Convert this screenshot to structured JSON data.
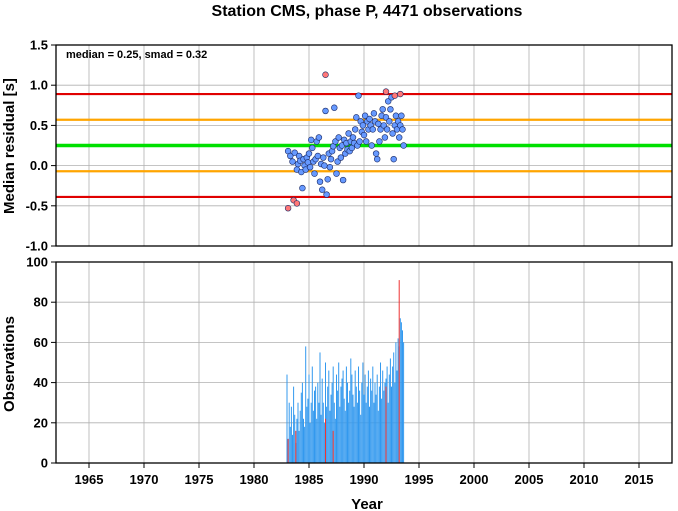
{
  "chart_data": [
    {
      "panel": "residuals",
      "type": "scatter",
      "title": "Station CMS, phase P, 4471 observations",
      "ylabel": "Median residual [s]",
      "stats_text": "median = 0.25, smad = 0.32",
      "xlim": [
        1962,
        2018
      ],
      "ylim": [
        -1.0,
        1.5
      ],
      "x_ticks": [
        1965,
        1970,
        1975,
        1980,
        1985,
        1990,
        1995,
        2000,
        2005,
        2010,
        2015
      ],
      "y_ticks": [
        -1.0,
        -0.5,
        0.0,
        0.5,
        1.0,
        1.5
      ],
      "y_tick_labels": [
        "-1.0",
        "-0.5",
        "0.0",
        "0.5",
        "1.0",
        "1.5"
      ],
      "grid": true,
      "reference_lines": [
        {
          "value": 0.25,
          "color": "#00e000",
          "meaning": "median"
        },
        {
          "value": 0.57,
          "color": "#ffa500"
        },
        {
          "value": -0.07,
          "color": "#ffa500"
        },
        {
          "value": 0.89,
          "color": "#e00000"
        },
        {
          "value": -0.39,
          "color": "#e00000"
        }
      ],
      "series": [
        {
          "color": "#6699ff",
          "points": [
            [
              1983.1,
              0.18
            ],
            [
              1983.3,
              0.12
            ],
            [
              1983.5,
              0.05
            ],
            [
              1983.7,
              0.16
            ],
            [
              1983.9,
              -0.05
            ],
            [
              1984.0,
              0.02
            ],
            [
              1984.1,
              0.12
            ],
            [
              1984.2,
              0.06
            ],
            [
              1984.3,
              -0.08
            ],
            [
              1984.4,
              -0.28
            ],
            [
              1984.5,
              0.08
            ],
            [
              1984.6,
              0.0
            ],
            [
              1984.7,
              -0.05
            ],
            [
              1984.8,
              0.1
            ],
            [
              1984.9,
              0.04
            ],
            [
              1985.0,
              0.15
            ],
            [
              1985.1,
              -0.02
            ],
            [
              1985.2,
              0.32
            ],
            [
              1985.3,
              0.22
            ],
            [
              1985.4,
              0.05
            ],
            [
              1985.5,
              -0.1
            ],
            [
              1985.6,
              0.08
            ],
            [
              1985.7,
              0.3
            ],
            [
              1985.8,
              0.12
            ],
            [
              1985.9,
              0.35
            ],
            [
              1986.0,
              -0.2
            ],
            [
              1986.1,
              0.02
            ],
            [
              1986.2,
              -0.3
            ],
            [
              1986.3,
              0.1
            ],
            [
              1986.4,
              0.0
            ],
            [
              1986.5,
              0.68
            ],
            [
              1986.6,
              -0.36
            ],
            [
              1986.7,
              -0.17
            ],
            [
              1986.8,
              0.15
            ],
            [
              1986.9,
              -0.02
            ],
            [
              1987.0,
              0.08
            ],
            [
              1987.1,
              0.18
            ],
            [
              1987.2,
              0.24
            ],
            [
              1987.3,
              0.72
            ],
            [
              1987.4,
              0.3
            ],
            [
              1987.5,
              -0.1
            ],
            [
              1987.6,
              0.05
            ],
            [
              1987.7,
              0.35
            ],
            [
              1987.8,
              0.22
            ],
            [
              1987.9,
              0.1
            ],
            [
              1988.0,
              0.25
            ],
            [
              1988.1,
              -0.18
            ],
            [
              1988.2,
              0.32
            ],
            [
              1988.3,
              0.15
            ],
            [
              1988.4,
              0.28
            ],
            [
              1988.5,
              0.2
            ],
            [
              1988.6,
              0.4
            ],
            [
              1988.7,
              0.18
            ],
            [
              1988.8,
              0.3
            ],
            [
              1988.9,
              0.22
            ],
            [
              1989.0,
              0.35
            ],
            [
              1989.1,
              0.28
            ],
            [
              1989.2,
              0.45
            ],
            [
              1989.3,
              0.6
            ],
            [
              1989.4,
              0.25
            ],
            [
              1989.5,
              0.87
            ],
            [
              1989.6,
              0.3
            ],
            [
              1989.7,
              0.55
            ],
            [
              1989.8,
              0.42
            ],
            [
              1989.9,
              0.5
            ],
            [
              1990.0,
              0.38
            ],
            [
              1990.1,
              0.62
            ],
            [
              1990.2,
              0.3
            ],
            [
              1990.3,
              0.55
            ],
            [
              1990.4,
              0.45
            ],
            [
              1990.5,
              0.58
            ],
            [
              1990.6,
              0.5
            ],
            [
              1990.7,
              0.25
            ],
            [
              1990.8,
              0.45
            ],
            [
              1990.9,
              0.65
            ],
            [
              1991.0,
              0.55
            ],
            [
              1991.1,
              0.15
            ],
            [
              1991.2,
              0.08
            ],
            [
              1991.3,
              0.52
            ],
            [
              1991.4,
              0.3
            ],
            [
              1991.5,
              0.45
            ],
            [
              1991.6,
              0.62
            ],
            [
              1991.7,
              0.7
            ],
            [
              1991.8,
              0.5
            ],
            [
              1991.9,
              0.35
            ],
            [
              1992.0,
              0.6
            ],
            [
              1992.1,
              0.45
            ],
            [
              1992.2,
              0.8
            ],
            [
              1992.3,
              0.55
            ],
            [
              1992.4,
              0.7
            ],
            [
              1992.5,
              0.85
            ],
            [
              1992.6,
              0.4
            ],
            [
              1992.7,
              0.08
            ],
            [
              1992.8,
              0.5
            ],
            [
              1992.9,
              0.62
            ],
            [
              1993.0,
              0.45
            ],
            [
              1993.1,
              0.55
            ],
            [
              1993.2,
              0.35
            ],
            [
              1993.3,
              0.5
            ],
            [
              1993.4,
              0.62
            ],
            [
              1993.5,
              0.45
            ],
            [
              1993.6,
              0.25
            ]
          ]
        },
        {
          "color": "#ff7777",
          "points": [
            [
              1983.1,
              -0.53
            ],
            [
              1983.6,
              -0.43
            ],
            [
              1983.9,
              -0.47
            ],
            [
              1986.5,
              1.13
            ],
            [
              1992.0,
              0.92
            ],
            [
              1992.8,
              0.87
            ],
            [
              1993.3,
              0.89
            ]
          ]
        }
      ]
    },
    {
      "panel": "observations",
      "type": "bar",
      "xlabel": "Year",
      "ylabel": "Observations",
      "xlim": [
        1962,
        2018
      ],
      "ylim": [
        0,
        100
      ],
      "x_ticks": [
        1965,
        1970,
        1975,
        1980,
        1985,
        1990,
        1995,
        2000,
        2005,
        2010,
        2015
      ],
      "y_ticks": [
        0,
        20,
        40,
        60,
        80,
        100
      ],
      "grid": true,
      "series": [
        {
          "color": "#3399ee",
          "bar_width_years": 0.075,
          "x": [
            1983.0,
            1983.1,
            1983.2,
            1983.3,
            1983.4,
            1983.5,
            1983.6,
            1983.7,
            1983.8,
            1983.9,
            1984.0,
            1984.1,
            1984.2,
            1984.3,
            1984.4,
            1984.5,
            1984.6,
            1984.7,
            1984.8,
            1984.9,
            1985.0,
            1985.1,
            1985.2,
            1985.3,
            1985.4,
            1985.5,
            1985.6,
            1985.7,
            1985.8,
            1985.9,
            1986.0,
            1986.1,
            1986.2,
            1986.3,
            1986.4,
            1986.5,
            1986.6,
            1986.7,
            1986.8,
            1986.9,
            1987.0,
            1987.1,
            1987.2,
            1987.3,
            1987.4,
            1987.5,
            1987.6,
            1987.7,
            1987.8,
            1987.9,
            1988.0,
            1988.1,
            1988.2,
            1988.3,
            1988.4,
            1988.5,
            1988.6,
            1988.7,
            1988.8,
            1988.9,
            1989.0,
            1989.1,
            1989.2,
            1989.3,
            1989.4,
            1989.5,
            1989.6,
            1989.7,
            1989.8,
            1989.9,
            1990.0,
            1990.1,
            1990.2,
            1990.3,
            1990.4,
            1990.5,
            1990.6,
            1990.7,
            1990.8,
            1990.9,
            1991.0,
            1991.1,
            1991.2,
            1991.3,
            1991.4,
            1991.5,
            1991.6,
            1991.7,
            1991.8,
            1991.9,
            1992.0,
            1992.1,
            1992.2,
            1992.3,
            1992.4,
            1992.5,
            1992.6,
            1992.7,
            1992.8,
            1992.9,
            1993.0,
            1993.1,
            1993.2,
            1993.3,
            1993.4,
            1993.5,
            1993.6
          ],
          "values": [
            44,
            12,
            30,
            18,
            28,
            14,
            38,
            24,
            10,
            22,
            30,
            16,
            26,
            35,
            40,
            22,
            18,
            58,
            28,
            32,
            44,
            20,
            30,
            48,
            26,
            36,
            38,
            22,
            40,
            30,
            55,
            24,
            42,
            30,
            20,
            50,
            28,
            38,
            46,
            26,
            34,
            40,
            48,
            30,
            22,
            44,
            36,
            50,
            28,
            38,
            42,
            46,
            32,
            26,
            48,
            40,
            30,
            36,
            52,
            44,
            34,
            28,
            46,
            38,
            30,
            48,
            36,
            24,
            40,
            50,
            34,
            44,
            30,
            38,
            46,
            28,
            42,
            36,
            48,
            30,
            40,
            34,
            44,
            26,
            38,
            50,
            32,
            46,
            36,
            40,
            42,
            48,
            30,
            44,
            52,
            38,
            48,
            55,
            40,
            60,
            46,
            62,
            58,
            72,
            70,
            66,
            60
          ]
        },
        {
          "color": "#ee3333",
          "bar_width_years": 0.08,
          "x": [
            1983.1,
            1983.8,
            1986.5,
            1987.2,
            1992.0,
            1993.2
          ],
          "values": [
            12,
            16,
            22,
            16,
            38,
            91
          ]
        }
      ]
    }
  ]
}
